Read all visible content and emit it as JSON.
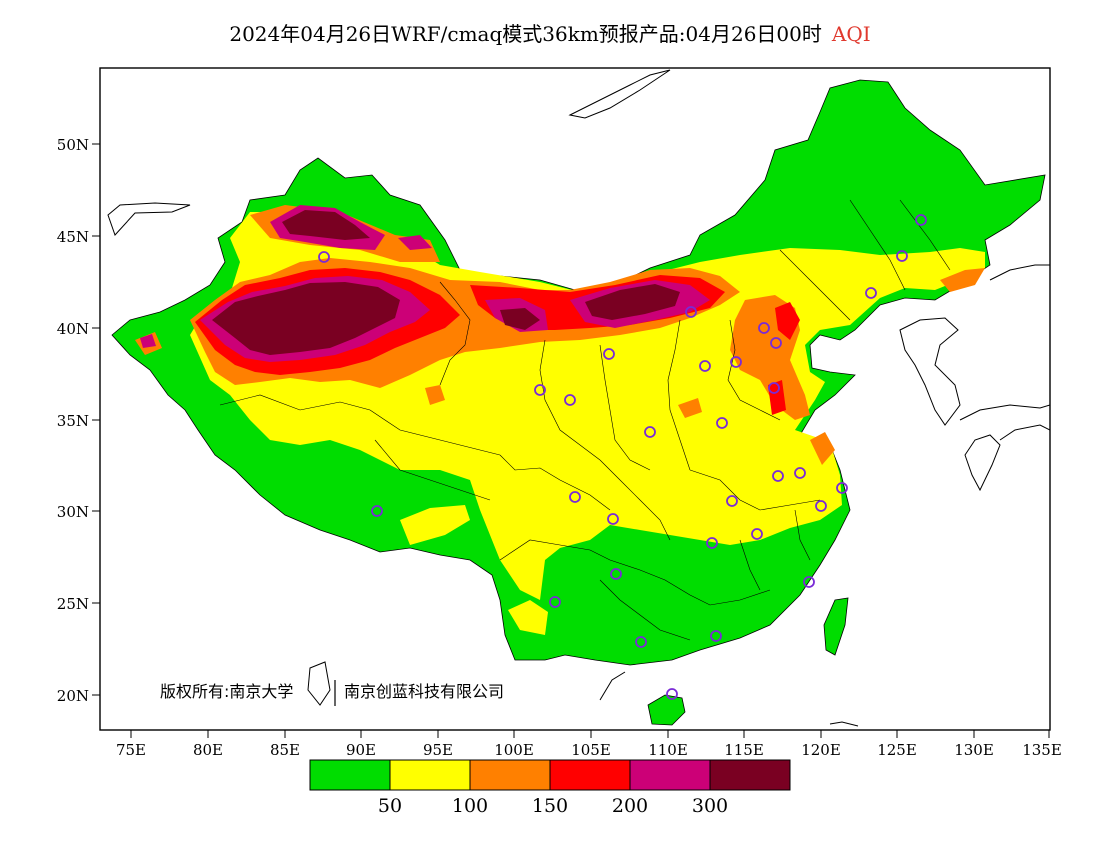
{
  "title": {
    "main": "2024年04月26日WRF/cmaq模式36km预报产品:04月26日00时",
    "metric": "AQI",
    "metric_color": "#e0392e"
  },
  "axes": {
    "y_ticks": [
      "50N",
      "45N",
      "40N",
      "35N",
      "30N",
      "25N",
      "20N"
    ],
    "x_ticks": [
      "75E",
      "80E",
      "85E",
      "90E",
      "95E",
      "100E",
      "105E",
      "110E",
      "115E",
      "120E",
      "125E",
      "130E",
      "135E"
    ]
  },
  "copyright": {
    "owner_a": "版权所有:南京大学",
    "owner_b": "南京创蓝科技有限公司"
  },
  "legend": {
    "colors": [
      "#00dd00",
      "#ffff00",
      "#ff8000",
      "#ff0000",
      "#cc0077",
      "#7a0022"
    ],
    "labels": [
      "50",
      "100",
      "150",
      "200",
      "300"
    ]
  },
  "map_colors": {
    "good": "#00dd00",
    "moderate": "#ffff00",
    "usg": "#ff8000",
    "unhealthy": "#ff0000",
    "very_unhealthy": "#cc0077",
    "hazardous": "#7a0022",
    "station": "#7a2bd6"
  }
}
